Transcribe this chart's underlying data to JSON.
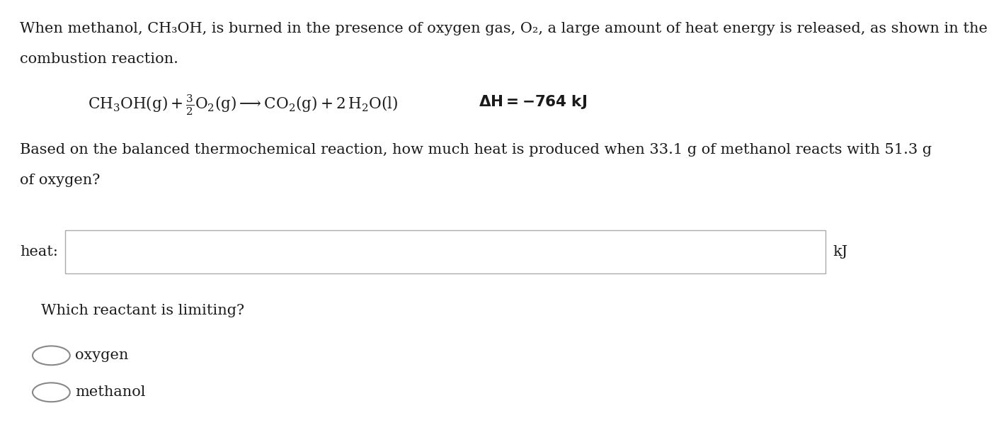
{
  "background_color": "#ffffff",
  "intro_text_line1": "When methanol, CH₃OH, is burned in the presence of oxygen gas, O₂, a large amount of heat energy is released, as shown in the",
  "intro_text_line2": "combustion reaction.",
  "question_line1": "Based on the balanced thermochemical reaction, how much heat is produced when 33.1 g of methanol reacts with 51.3 g",
  "question_line2": "of oxygen?",
  "heat_label": "heat:",
  "heat_unit": "kJ",
  "limiting_question": "Which reactant is limiting?",
  "option1": "oxygen",
  "option2": "methanol",
  "font_size_body": 15,
  "text_color": "#1a1a1a",
  "box_edge_color": "#aaaaaa",
  "box_fill": "#ffffff",
  "circle_edge_color": "#888888"
}
